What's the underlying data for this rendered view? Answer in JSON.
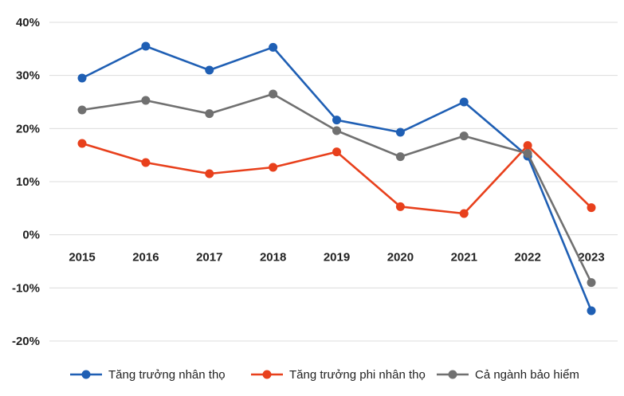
{
  "chart_data": {
    "type": "line",
    "title": "",
    "xlabel": "",
    "ylabel": "",
    "categories": [
      "2015",
      "2016",
      "2017",
      "2018",
      "2019",
      "2020",
      "2021",
      "2022",
      "2023"
    ],
    "ylim": [
      -20,
      40
    ],
    "yticks": [
      -20,
      -10,
      0,
      10,
      20,
      30,
      40
    ],
    "ytick_labels": [
      "-20%",
      "-10%",
      "0%",
      "10%",
      "20%",
      "30%",
      "40%"
    ],
    "grid": "horizontal",
    "legend_position": "bottom",
    "series": [
      {
        "name": "Tăng trưởng nhân thọ",
        "color": "#1f5fb4",
        "values": [
          29.5,
          35.5,
          31.0,
          35.3,
          21.6,
          19.3,
          25.0,
          14.8,
          -14.3
        ]
      },
      {
        "name": "Tăng trưởng phi nhân thọ",
        "color": "#e8401c",
        "values": [
          17.2,
          13.6,
          11.5,
          12.7,
          15.6,
          5.3,
          4.0,
          16.8,
          5.1
        ]
      },
      {
        "name": "Cả ngành bảo hiểm",
        "color": "#707070",
        "values": [
          23.5,
          25.3,
          22.8,
          26.5,
          19.6,
          14.7,
          18.6,
          15.3,
          -9.0
        ]
      }
    ]
  }
}
